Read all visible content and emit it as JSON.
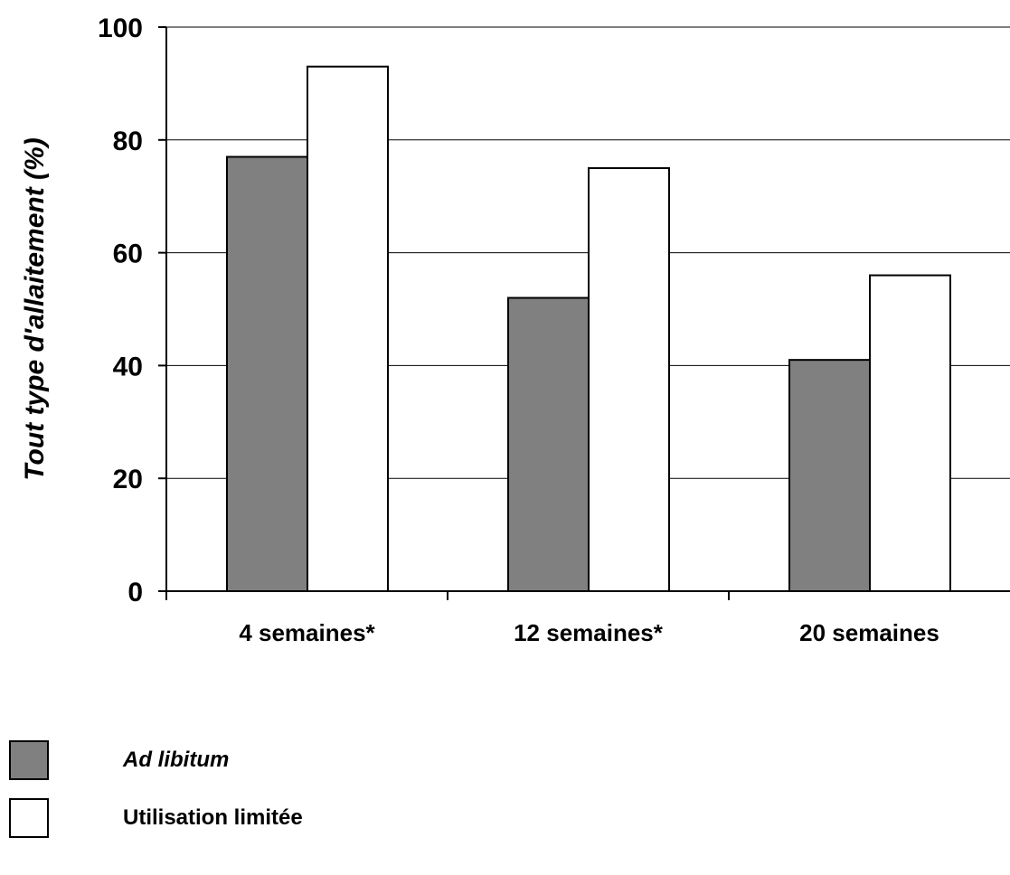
{
  "chart_data": {
    "type": "bar",
    "ylabel": "Tout type d'allaitement (%)",
    "xlabel": "",
    "ylim": [
      0,
      100
    ],
    "yticks": [
      0,
      20,
      40,
      60,
      80,
      100
    ],
    "categories": [
      "4 semaines*",
      "12 semaines*",
      "20 semaines"
    ],
    "series": [
      {
        "name": "Ad libitum",
        "values": [
          77,
          52,
          41
        ],
        "color": "#808080",
        "italic": true
      },
      {
        "name": "Utilisation limitée",
        "values": [
          93,
          75,
          56
        ],
        "color": "#ffffff",
        "italic": false
      }
    ],
    "grid": true,
    "legend_position": "bottom-left"
  }
}
